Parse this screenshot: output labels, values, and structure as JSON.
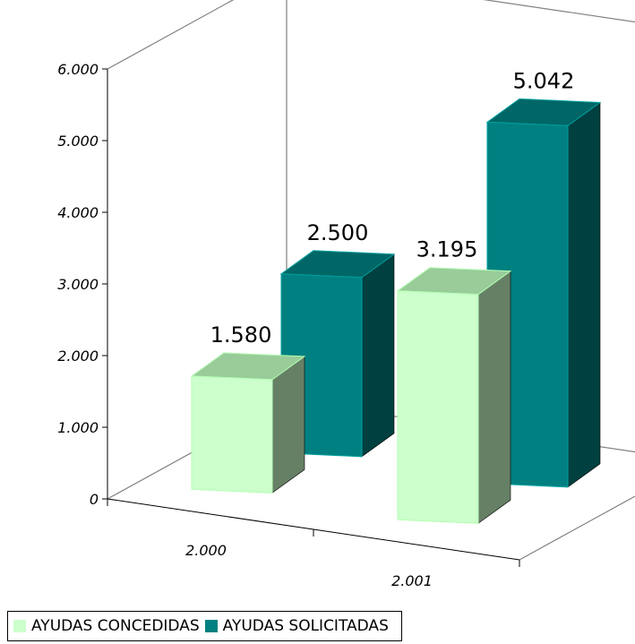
{
  "chart_data": {
    "type": "bar",
    "style": "3d-column",
    "categories": [
      "2.000",
      "2.001"
    ],
    "series": [
      {
        "name": "AYUDAS CONCEDIDAS",
        "values": [
          1580,
          3195
        ],
        "labels": [
          "1.580",
          "3.195"
        ],
        "color": "#ccffcc"
      },
      {
        "name": "AYUDAS SOLICITADAS",
        "values": [
          2500,
          5042
        ],
        "labels": [
          "2.500",
          "5.042"
        ],
        "color": "#008080"
      }
    ],
    "yticks": [
      "0",
      "1.000",
      "2.000",
      "3.000",
      "4.000",
      "5.000",
      "6.000"
    ],
    "ylim": [
      0,
      6000
    ],
    "grid": false,
    "legend": "bottom-left"
  }
}
